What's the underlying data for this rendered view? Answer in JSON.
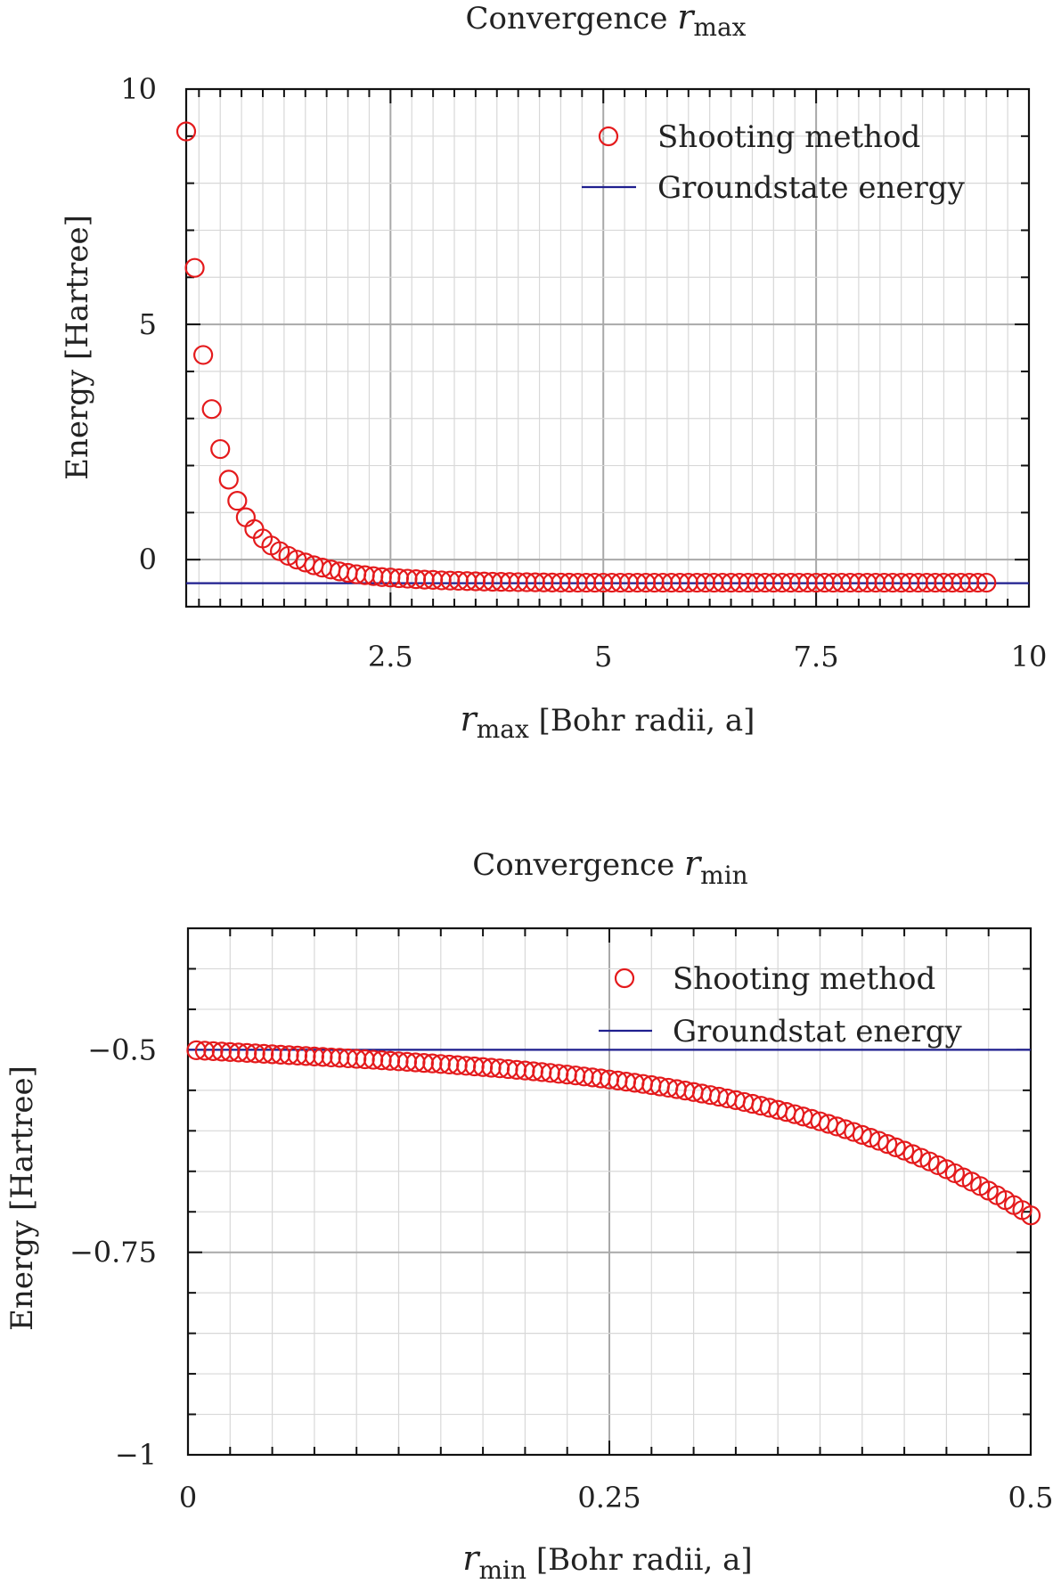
{
  "chart_data": [
    {
      "type": "scatter",
      "title_text": "Convergence ",
      "title_var": "r",
      "title_sub": "max",
      "xlabel_var": "r",
      "xlabel_sub": "max",
      "xlabel_text": " [Bohr radii, a]",
      "ylabel": "Energy [Hartree]",
      "xlim": [
        0.1,
        10
      ],
      "ylim": [
        -1,
        10
      ],
      "xticks": [
        2.5,
        5,
        7.5,
        10
      ],
      "xtick_labels": [
        "2.5",
        "5",
        "7.5",
        "10"
      ],
      "yticks": [
        0,
        5,
        10
      ],
      "ytick_labels": [
        "0",
        "5",
        "10"
      ],
      "grid": true,
      "legend_position": "top-right",
      "series": [
        {
          "name": "Shooting method",
          "kind": "markers",
          "color": "#e41a1c",
          "x_start": 0.1,
          "x_step": 0.1,
          "count": 95,
          "values": [
            9.1,
            6.2,
            4.35,
            3.2,
            2.35,
            1.7,
            1.25,
            0.9,
            0.65,
            0.45,
            0.3,
            0.18,
            0.08,
            0.0,
            -0.06,
            -0.12,
            -0.17,
            -0.21,
            -0.25,
            -0.28,
            -0.31,
            -0.33,
            -0.35,
            -0.37,
            -0.38,
            -0.395,
            -0.405,
            -0.415,
            -0.425,
            -0.43,
            -0.44,
            -0.445,
            -0.45,
            -0.455,
            -0.46,
            -0.465,
            -0.47,
            -0.472,
            -0.475,
            -0.478,
            -0.48,
            -0.482,
            -0.484,
            -0.486,
            -0.488,
            -0.489,
            -0.49,
            -0.49,
            -0.49,
            -0.49,
            -0.49,
            -0.49,
            -0.49,
            -0.49,
            -0.49,
            -0.49,
            -0.49,
            -0.49,
            -0.49,
            -0.49,
            -0.49,
            -0.49,
            -0.49,
            -0.49,
            -0.49,
            -0.49,
            -0.49,
            -0.49,
            -0.49,
            -0.49,
            -0.49,
            -0.49,
            -0.49,
            -0.49,
            -0.49,
            -0.49,
            -0.49,
            -0.49,
            -0.49,
            -0.49,
            -0.49,
            -0.49,
            -0.49,
            -0.49,
            -0.49,
            -0.49,
            -0.49,
            -0.49,
            -0.49,
            -0.49,
            -0.49,
            -0.49,
            -0.49,
            -0.49,
            -0.49
          ]
        },
        {
          "name": "Groundstate energy",
          "kind": "hline",
          "color": "#1f1f8f",
          "value": -0.5
        }
      ]
    },
    {
      "type": "scatter",
      "title_text": "Convergence ",
      "title_var": "r",
      "title_sub": "min",
      "xlabel_var": "r",
      "xlabel_sub": "min",
      "xlabel_text": " [Bohr radii, a]",
      "ylabel": "Energy [Hartree]",
      "xlim": [
        0,
        0.5
      ],
      "ylim": [
        -1,
        -0.35
      ],
      "xticks": [
        0,
        0.25,
        0.5
      ],
      "xtick_labels": [
        "0",
        "0.25",
        "0.5"
      ],
      "yticks": [
        -0.5,
        -0.75,
        -1
      ],
      "ytick_labels": [
        "−0.5",
        "−0.75",
        "−1"
      ],
      "grid": true,
      "legend_position": "top-right",
      "series": [
        {
          "name": "Shooting method",
          "kind": "markers",
          "color": "#e41a1c",
          "x_start": 0.005,
          "x_step": 0.005,
          "count": 100,
          "curve": "E = -0.5 - 0.1088*x - 2.4*x^4",
          "values": []
        },
        {
          "name": "Groundstat energy",
          "kind": "hline",
          "color": "#1f1f8f",
          "value": -0.5
        }
      ]
    }
  ]
}
